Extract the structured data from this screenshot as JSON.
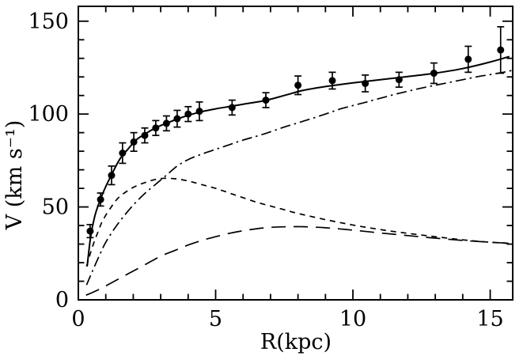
{
  "figure": {
    "background": "#ffffff",
    "ink_color": "#000000",
    "description": "Galaxy rotation curve: observed velocities with error bars, solid total-model curve and three dashed component curves"
  },
  "chart_data": {
    "type": "line",
    "title": "",
    "xlabel": "R(kpc)",
    "ylabel": "V (km s⁻¹)",
    "xlim": [
      0,
      15.82
    ],
    "ylim": [
      0,
      158
    ],
    "grid": false,
    "frame": "full box with inward ticks",
    "legend": "none",
    "x_axis": {
      "major_ticks": [
        0,
        5,
        10,
        15
      ],
      "tick_labels": [
        "0",
        "5",
        "10",
        "15"
      ],
      "minor_tick_step": 1
    },
    "y_axis": {
      "major_ticks": [
        0,
        50,
        100,
        150
      ],
      "tick_labels": [
        "0",
        "50",
        "100",
        "150"
      ],
      "minor_tick_step": 10
    },
    "series": [
      {
        "id": "total-model",
        "name": "total model curve (solid)",
        "type": "line",
        "style": "solid",
        "x": [
          0.32,
          0.45,
          0.6,
          0.8,
          1.0,
          1.2,
          1.5,
          1.8,
          2.1,
          2.4,
          2.8,
          3.2,
          3.6,
          4.0,
          4.5,
          5.0,
          5.6,
          6.2,
          6.8,
          7.5,
          8.2,
          9.0,
          10.0,
          11.0,
          12.0,
          13.0,
          14.0,
          15.0,
          15.7
        ],
        "y": [
          18,
          34,
          45,
          54,
          61,
          67,
          75.5,
          81,
          86,
          89,
          92.5,
          95,
          97.3,
          99.3,
          101.3,
          102.8,
          104.3,
          105.8,
          107.3,
          110,
          112.8,
          114.8,
          116.8,
          118.5,
          120.2,
          122,
          124.5,
          128,
          131
        ]
      },
      {
        "id": "dashdot-component",
        "name": "steadily rising component curve (dash-dot)",
        "type": "line",
        "style": "dash-dot",
        "x": [
          0.3,
          0.5,
          0.8,
          1.0,
          1.3,
          1.6,
          2.0,
          2.4,
          2.8,
          3.2,
          3.6,
          4.0,
          4.5,
          5.0,
          5.5,
          6.0,
          6.7,
          7.5,
          8.2,
          9.0,
          9.6,
          10.5,
          11.5,
          12.5,
          13.5,
          14.5,
          15.3,
          15.8
        ],
        "y": [
          8,
          15,
          25,
          31,
          38,
          44,
          51,
          57,
          62,
          67,
          72,
          75.5,
          78.5,
          81,
          83.5,
          86,
          89,
          93,
          96.2,
          100,
          103,
          106.5,
          110.5,
          114,
          117,
          120,
          122,
          123.5
        ]
      },
      {
        "id": "shortdash-component",
        "name": "inner peaked component curve (short dash)",
        "type": "line",
        "style": "short-dash",
        "x": [
          0.3,
          0.5,
          0.7,
          0.9,
          1.2,
          1.5,
          2.0,
          2.5,
          3.0,
          3.5,
          4.0,
          4.5,
          5.0,
          5.5,
          6.0,
          6.5,
          7.0,
          7.5,
          8.0,
          9.0,
          10.0,
          11.0,
          12.0,
          13.0,
          14.0,
          15.0,
          15.8
        ],
        "y": [
          18,
          28,
          36,
          43,
          50,
          55.5,
          60.5,
          63.5,
          65.3,
          65.2,
          64,
          62,
          60,
          57.5,
          55,
          52.5,
          50.5,
          48.5,
          46.5,
          43.2,
          40.3,
          37.8,
          35.8,
          34,
          32.3,
          31,
          30.3
        ]
      },
      {
        "id": "longdash-component",
        "name": "slowly rising flat component curve (long dash)",
        "type": "line",
        "style": "long-dash",
        "x": [
          0.28,
          0.6,
          1.0,
          1.5,
          2.0,
          2.5,
          3.0,
          3.5,
          4.0,
          4.5,
          5.0,
          5.5,
          6.0,
          6.5,
          7.0,
          7.5,
          8.0,
          8.5,
          9.0,
          9.5,
          10.0,
          11.0,
          12.0,
          13.0,
          14.0,
          15.0,
          15.8
        ],
        "y": [
          2.5,
          4.5,
          7.5,
          11.5,
          15.5,
          19.5,
          23.5,
          26.5,
          29.5,
          32,
          34,
          35.8,
          37.2,
          38.3,
          39,
          39.3,
          39.4,
          39.2,
          38.8,
          38.2,
          37.5,
          36,
          34.6,
          33.2,
          32,
          31,
          30.4
        ]
      },
      {
        "id": "observed",
        "name": "observed rotation velocities (filled circles with error bars)",
        "type": "scatter",
        "marker": "filled-circle",
        "has_error_bars": true,
        "points": [
          {
            "x": 0.43,
            "y": 37,
            "err": 3.5
          },
          {
            "x": 0.81,
            "y": 54,
            "err": 3.5
          },
          {
            "x": 1.21,
            "y": 67,
            "err": 5
          },
          {
            "x": 1.61,
            "y": 79,
            "err": 5.5
          },
          {
            "x": 2.02,
            "y": 85,
            "err": 5
          },
          {
            "x": 2.42,
            "y": 88.5,
            "err": 4
          },
          {
            "x": 2.82,
            "y": 92.5,
            "err": 4
          },
          {
            "x": 3.21,
            "y": 95,
            "err": 4
          },
          {
            "x": 3.6,
            "y": 97.5,
            "err": 4.5
          },
          {
            "x": 4.0,
            "y": 100,
            "err": 4
          },
          {
            "x": 4.41,
            "y": 101.5,
            "err": 5
          },
          {
            "x": 5.6,
            "y": 103.5,
            "err": 4
          },
          {
            "x": 6.83,
            "y": 107.5,
            "err": 4
          },
          {
            "x": 8.0,
            "y": 115.5,
            "err": 5
          },
          {
            "x": 9.25,
            "y": 118,
            "err": 4.5
          },
          {
            "x": 10.45,
            "y": 116.5,
            "err": 4.5
          },
          {
            "x": 11.68,
            "y": 118.5,
            "err": 4
          },
          {
            "x": 12.95,
            "y": 122,
            "err": 5.5
          },
          {
            "x": 14.2,
            "y": 129.5,
            "err": 7
          },
          {
            "x": 15.38,
            "y": 134.5,
            "err": 12.5
          }
        ]
      }
    ]
  }
}
